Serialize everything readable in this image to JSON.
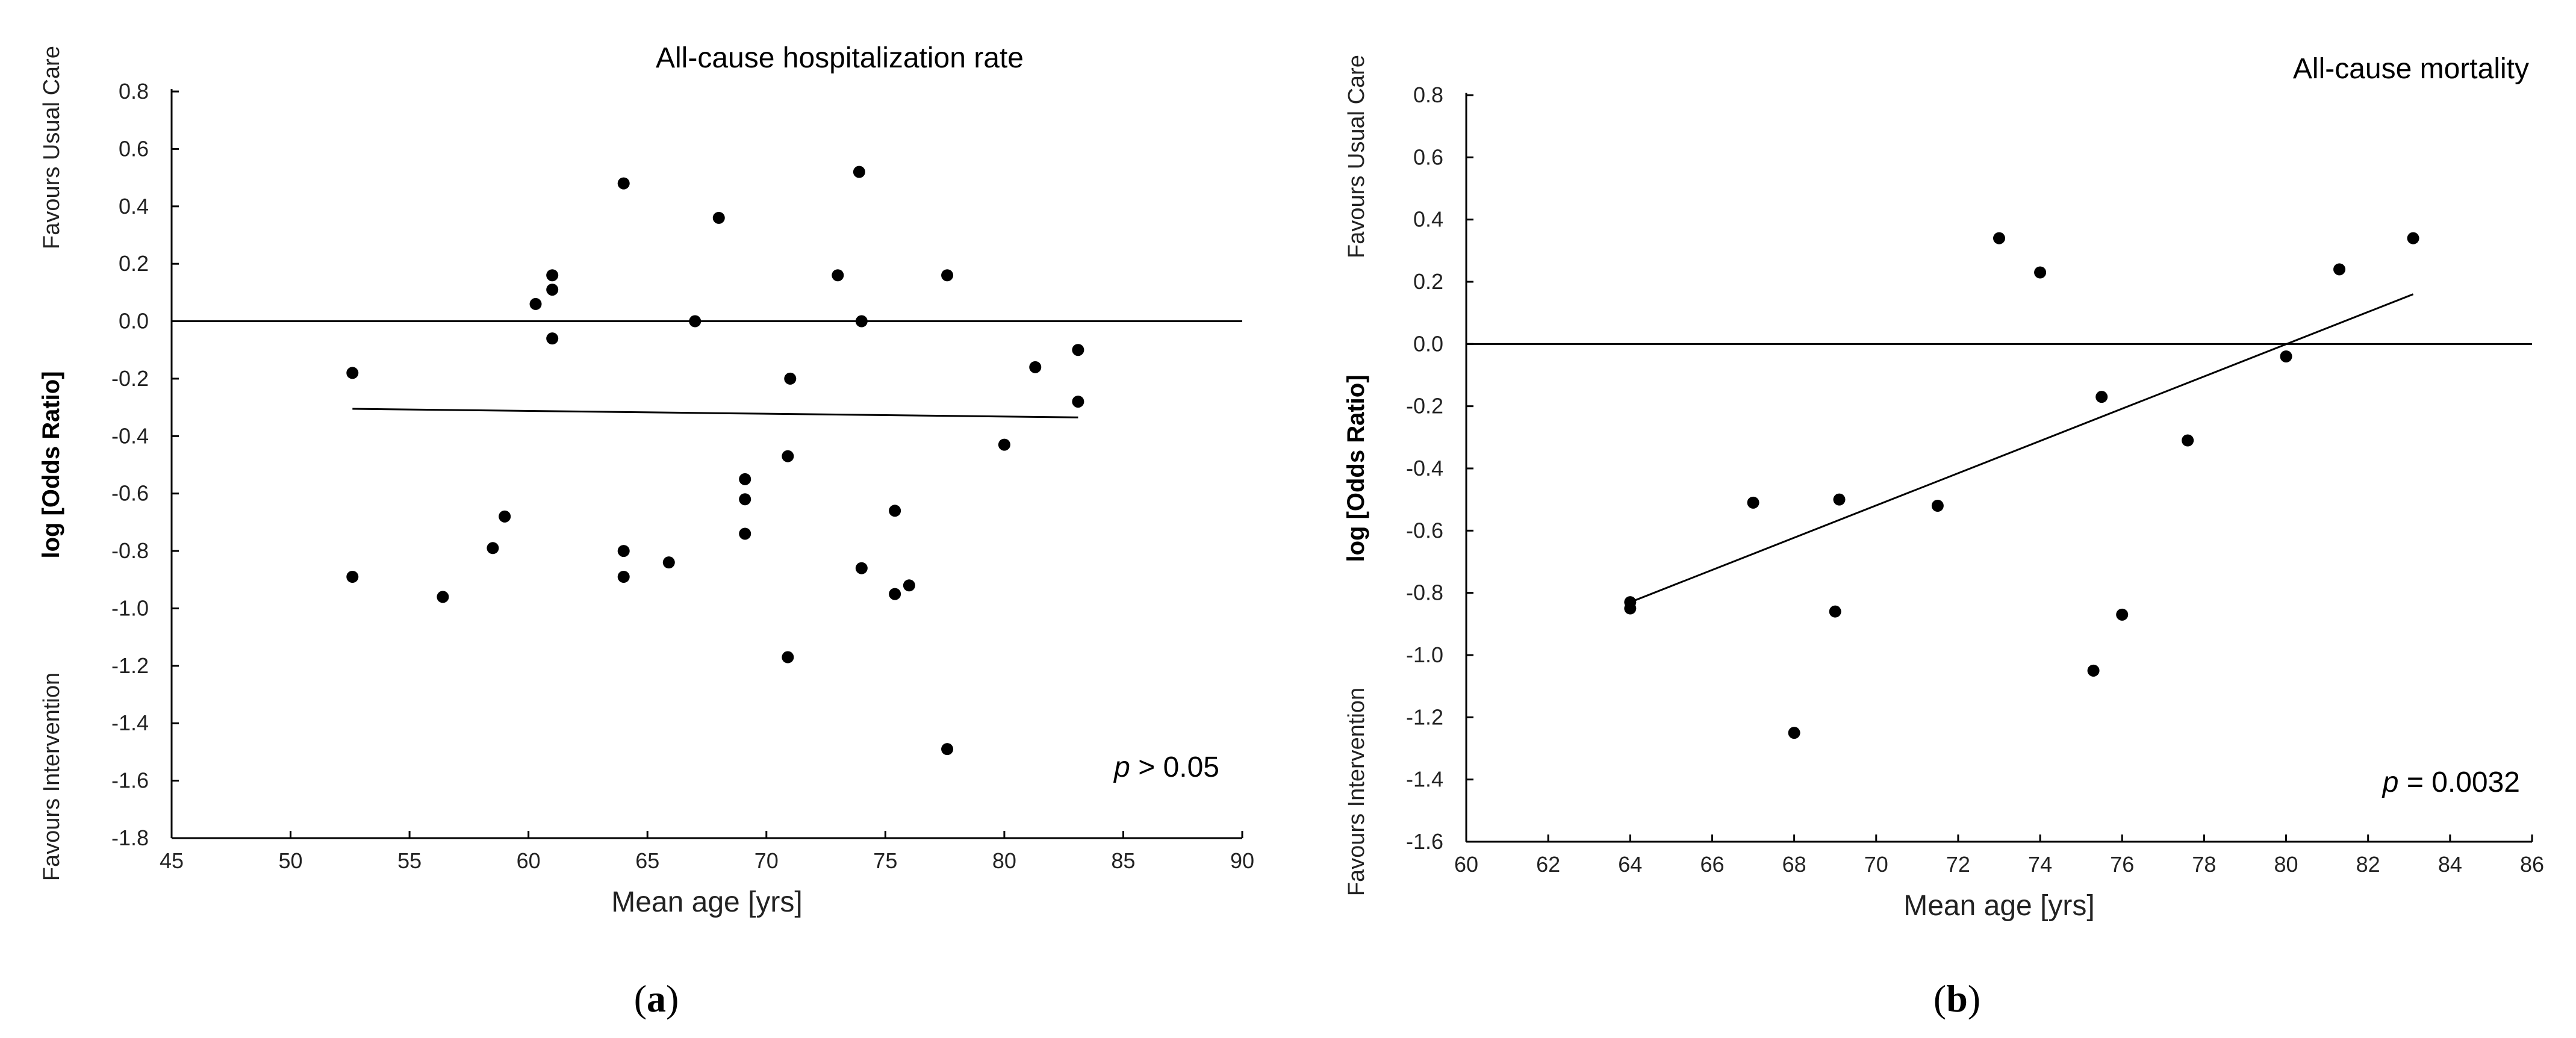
{
  "chart_data": [
    {
      "type": "scatter",
      "panel": "a",
      "title": "All-cause hospitalization rate",
      "xlabel": "Mean age [yrs]",
      "ylabel": "log [Odds Ratio]",
      "ylabel_top": "Favours Usual Care",
      "ylabel_bottom": "Favours Intervention",
      "xlim": [
        45,
        90
      ],
      "ylim": [
        -1.8,
        0.8
      ],
      "xticks": [
        45,
        50,
        55,
        60,
        65,
        70,
        75,
        80,
        85,
        90
      ],
      "yticks": [
        0.8,
        0.6,
        0.4,
        0.2,
        0.0,
        -0.2,
        -0.4,
        -0.6,
        -0.8,
        -1.0,
        -1.2,
        -1.4,
        -1.6,
        -1.8
      ],
      "reference_line": 0.0,
      "p_label": "p",
      "p_text": "> 0.05",
      "fit_line": {
        "x": [
          52.6,
          83.1
        ],
        "y": [
          -0.305,
          -0.335
        ]
      },
      "points": [
        [
          52.6,
          -0.18
        ],
        [
          52.6,
          -0.89
        ],
        [
          56.4,
          -0.96
        ],
        [
          58.5,
          -0.79
        ],
        [
          59.0,
          -0.68
        ],
        [
          60.3,
          0.06
        ],
        [
          61.0,
          0.16
        ],
        [
          61.0,
          0.11
        ],
        [
          61.0,
          -0.06
        ],
        [
          64.0,
          0.48
        ],
        [
          64.0,
          -0.8
        ],
        [
          64.0,
          -0.89
        ],
        [
          65.9,
          -0.84
        ],
        [
          67.0,
          0.0
        ],
        [
          68.0,
          0.36
        ],
        [
          69.1,
          -0.55
        ],
        [
          69.1,
          -0.62
        ],
        [
          69.1,
          -0.74
        ],
        [
          70.9,
          -0.47
        ],
        [
          71.0,
          -0.2
        ],
        [
          70.9,
          -1.17
        ],
        [
          73.0,
          0.16
        ],
        [
          73.9,
          0.52
        ],
        [
          74.0,
          0.0
        ],
        [
          74.0,
          -0.86
        ],
        [
          75.4,
          -0.66
        ],
        [
          75.4,
          -0.95
        ],
        [
          76.0,
          -0.92
        ],
        [
          77.6,
          0.16
        ],
        [
          77.6,
          -1.49
        ],
        [
          80.0,
          -0.43
        ],
        [
          81.3,
          -0.16
        ],
        [
          83.1,
          -0.1
        ],
        [
          83.1,
          -0.28
        ]
      ]
    },
    {
      "type": "scatter",
      "panel": "b",
      "title": "All-cause mortality",
      "xlabel": "Mean age [yrs]",
      "ylabel": "log [Odds Ratio]",
      "ylabel_top": "Favours Usual Care",
      "ylabel_bottom": "Favours Intervention",
      "xlim": [
        60,
        86
      ],
      "ylim": [
        -1.6,
        0.8
      ],
      "xticks": [
        60,
        62,
        64,
        66,
        68,
        70,
        72,
        74,
        76,
        78,
        80,
        82,
        84,
        86
      ],
      "yticks": [
        0.8,
        0.6,
        0.4,
        0.2,
        0.0,
        -0.2,
        -0.4,
        -0.6,
        -0.8,
        -1.0,
        -1.2,
        -1.4,
        -1.6
      ],
      "reference_line": 0.0,
      "p_label": "p",
      "p_text": "= 0.0032",
      "fit_line": {
        "x": [
          64.0,
          83.1
        ],
        "y": [
          -0.83,
          0.16
        ]
      },
      "points": [
        [
          64.0,
          -0.83
        ],
        [
          64.0,
          -0.85
        ],
        [
          67.0,
          -0.51
        ],
        [
          68.0,
          -1.25
        ],
        [
          69.0,
          -0.86
        ],
        [
          69.1,
          -0.5
        ],
        [
          71.5,
          -0.52
        ],
        [
          73.0,
          0.34
        ],
        [
          74.0,
          0.23
        ],
        [
          75.3,
          -1.05
        ],
        [
          75.5,
          -0.17
        ],
        [
          76.0,
          -0.87
        ],
        [
          77.6,
          -0.31
        ],
        [
          80.0,
          -0.04
        ],
        [
          81.3,
          0.24
        ],
        [
          83.1,
          0.34
        ]
      ]
    }
  ],
  "captions": [
    {
      "open": "(",
      "letter": "a",
      "close": ")"
    },
    {
      "open": "(",
      "letter": "b",
      "close": ")"
    }
  ]
}
